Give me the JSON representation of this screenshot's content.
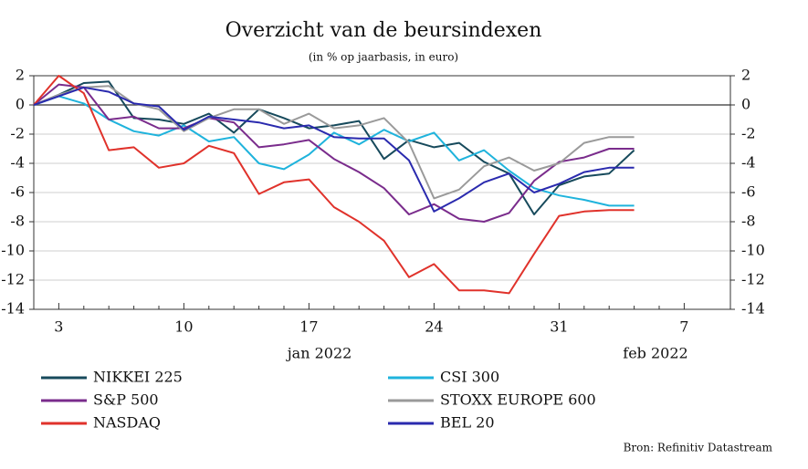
{
  "chart_data": {
    "type": "line",
    "title": "Overzicht van de beursindexen",
    "subtitle": "(in % op jaarbasis, in euro)",
    "source": "Bron: Refinitiv Datastream",
    "categories": [
      null,
      "3",
      null,
      null,
      null,
      null,
      "10",
      null,
      null,
      null,
      null,
      "17",
      null,
      null,
      null,
      null,
      "24",
      null,
      null,
      null,
      null,
      "31",
      null,
      null,
      null,
      null,
      "7"
    ],
    "period_labels": [
      "jan 2022",
      "feb 2022"
    ],
    "ylim": [
      -14,
      2
    ],
    "yticks": [
      2,
      0,
      -2,
      -4,
      -6,
      -8,
      -10,
      -12,
      -14
    ],
    "grid": true,
    "series": [
      {
        "name": "NIKKEI 225",
        "color": "#174a5c",
        "values": [
          0,
          0.7,
          1.5,
          1.6,
          -0.9,
          -1.0,
          -1.3,
          -0.6,
          -1.9,
          -0.3,
          -0.9,
          -1.6,
          -1.4,
          -1.1,
          -3.7,
          -2.4,
          -2.9,
          -2.6,
          -3.9,
          -4.7,
          -7.5,
          -5.5,
          -4.9,
          -4.7,
          -3.1,
          null,
          null
        ]
      },
      {
        "name": "CSI 300",
        "color": "#1fb3dc",
        "values": [
          0,
          0.6,
          0.1,
          -1.0,
          -1.8,
          -2.1,
          -1.4,
          -2.5,
          -2.2,
          -4.0,
          -4.4,
          -3.4,
          -1.9,
          -2.7,
          -1.7,
          -2.5,
          -1.9,
          -3.8,
          -3.1,
          -4.5,
          -5.7,
          -6.2,
          -6.5,
          -6.9,
          -6.9,
          null,
          null
        ]
      },
      {
        "name": "S&P 500",
        "color": "#7a2c8c",
        "values": [
          0,
          1.4,
          1.2,
          -1.0,
          -0.8,
          -1.6,
          -1.6,
          -0.9,
          -1.2,
          -2.9,
          -2.7,
          -2.4,
          -3.7,
          -4.6,
          -5.7,
          -7.5,
          -6.8,
          -7.8,
          -8.0,
          -7.4,
          -5.2,
          -3.9,
          -3.6,
          -3.0,
          -3.0,
          null,
          null
        ]
      },
      {
        "name": "STOXX EUROPE 600",
        "color": "#9a9a9a",
        "values": [
          0,
          0.7,
          1.2,
          1.3,
          0.1,
          -0.3,
          -1.8,
          -0.9,
          -0.3,
          -0.3,
          -1.3,
          -0.6,
          -1.6,
          -1.4,
          -0.9,
          -2.6,
          -6.4,
          -5.8,
          -4.2,
          -3.6,
          -4.5,
          -4.0,
          -2.6,
          -2.2,
          -2.2,
          null,
          null
        ]
      },
      {
        "name": "NASDAQ",
        "color": "#e0322b",
        "values": [
          0,
          2.0,
          0.8,
          -3.1,
          -2.9,
          -4.3,
          -4.0,
          -2.8,
          -3.3,
          -6.1,
          -5.3,
          -5.1,
          -7.0,
          -8.0,
          -9.3,
          -11.8,
          -10.9,
          -12.7,
          -12.7,
          -12.9,
          -10.2,
          -7.6,
          -7.3,
          -7.2,
          -7.2,
          null,
          null
        ]
      },
      {
        "name": "BEL 20",
        "color": "#2a2aae",
        "values": [
          0,
          0.6,
          1.2,
          0.9,
          0.1,
          -0.1,
          -1.7,
          -0.8,
          -1.0,
          -1.2,
          -1.6,
          -1.4,
          -2.2,
          -2.3,
          -2.3,
          -3.8,
          -7.3,
          -6.4,
          -5.3,
          -4.7,
          -6.0,
          -5.4,
          -4.6,
          -4.3,
          -4.3,
          null,
          null
        ]
      }
    ]
  }
}
